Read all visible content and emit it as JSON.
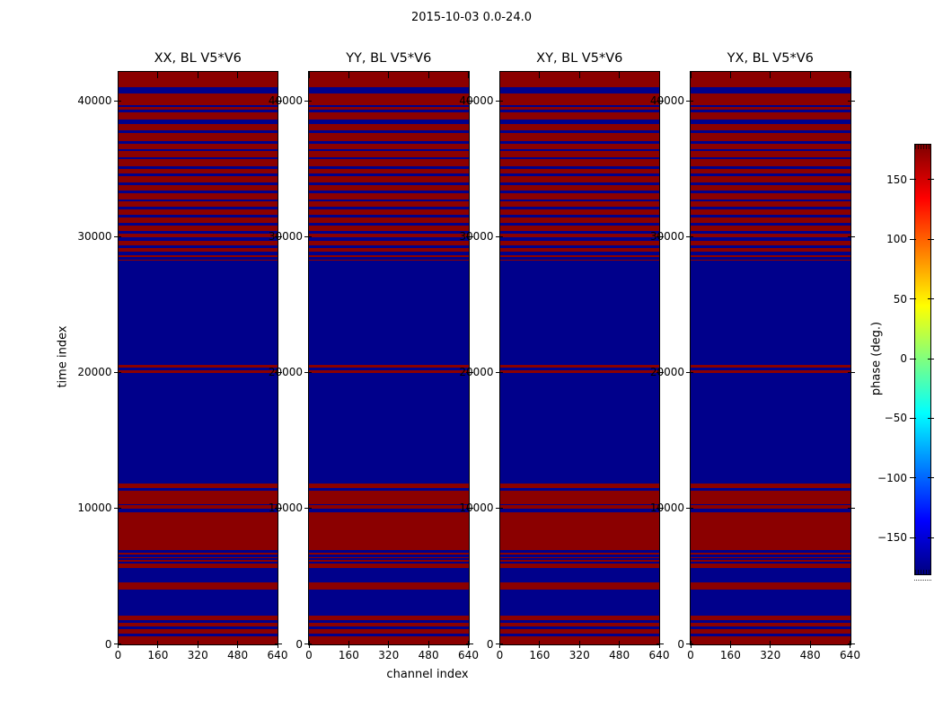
{
  "figure": {
    "background": "#ffffff"
  },
  "chart_data": {
    "type": "heatmap",
    "title": "2015-10-03 0.0-24.0",
    "xlabel": "channel index",
    "ylabel": "time index",
    "panels": [
      {
        "title": "XX, BL V5*V6"
      },
      {
        "title": "YY, BL V5*V6"
      },
      {
        "title": "XY, BL V5*V6"
      },
      {
        "title": "YX, BL V5*V6"
      }
    ],
    "x_tick_labels": [
      "0",
      "160",
      "320",
      "480",
      "640"
    ],
    "x_tick_values": [
      0,
      160,
      320,
      480,
      640
    ],
    "y_tick_labels": [
      "0",
      "10000",
      "20000",
      "30000",
      "40000"
    ],
    "y_tick_values": [
      0,
      10000,
      20000,
      30000,
      40000
    ],
    "xlim": [
      0,
      640
    ],
    "ylim": [
      0,
      42120
    ],
    "grid": false,
    "colors": {
      "phase_plus": "#8b0000",
      "phase_minus": "#00008b"
    },
    "colorbar": {
      "label": "phase (deg.)",
      "tick_labels": [
        "150",
        "100",
        "50",
        "0",
        "−50",
        "−100",
        "−150"
      ],
      "tick_values": [
        150,
        100,
        50,
        0,
        -50,
        -100,
        -150
      ],
      "range": [
        -180,
        180
      ],
      "colormap": "jet",
      "position": "right"
    },
    "note": "All four panels show the identical banded pattern: red rows = phase near +180 deg, blue rows = phase near -180 deg, uniform across all channels.",
    "blue_bands_time_index": [
      [
        570,
        750
      ],
      [
        1080,
        1300
      ],
      [
        1560,
        1740
      ],
      [
        2070,
        3990
      ],
      [
        4500,
        5560
      ],
      [
        5890,
        6040
      ],
      [
        6160,
        6290
      ],
      [
        6380,
        6560
      ],
      [
        6710,
        6890
      ],
      [
        9720,
        9990
      ],
      [
        10220,
        10320
      ],
      [
        11280,
        11480
      ],
      [
        11800,
        19920
      ],
      [
        20120,
        20320
      ],
      [
        20550,
        28220
      ],
      [
        28310,
        28470
      ],
      [
        28640,
        28870
      ],
      [
        29140,
        29370
      ],
      [
        29700,
        29930
      ],
      [
        30230,
        30430
      ],
      [
        30830,
        30990
      ],
      [
        31420,
        31620
      ],
      [
        32020,
        32190
      ],
      [
        32580,
        32750
      ],
      [
        33180,
        33380
      ],
      [
        33780,
        33980
      ],
      [
        34440,
        34610
      ],
      [
        34970,
        35170
      ],
      [
        35670,
        35840
      ],
      [
        36270,
        36430
      ],
      [
        36830,
        37030
      ],
      [
        37600,
        37830
      ],
      [
        38290,
        38620
      ],
      [
        39150,
        39350
      ],
      [
        39550,
        39680
      ],
      [
        40540,
        41000
      ]
    ]
  }
}
